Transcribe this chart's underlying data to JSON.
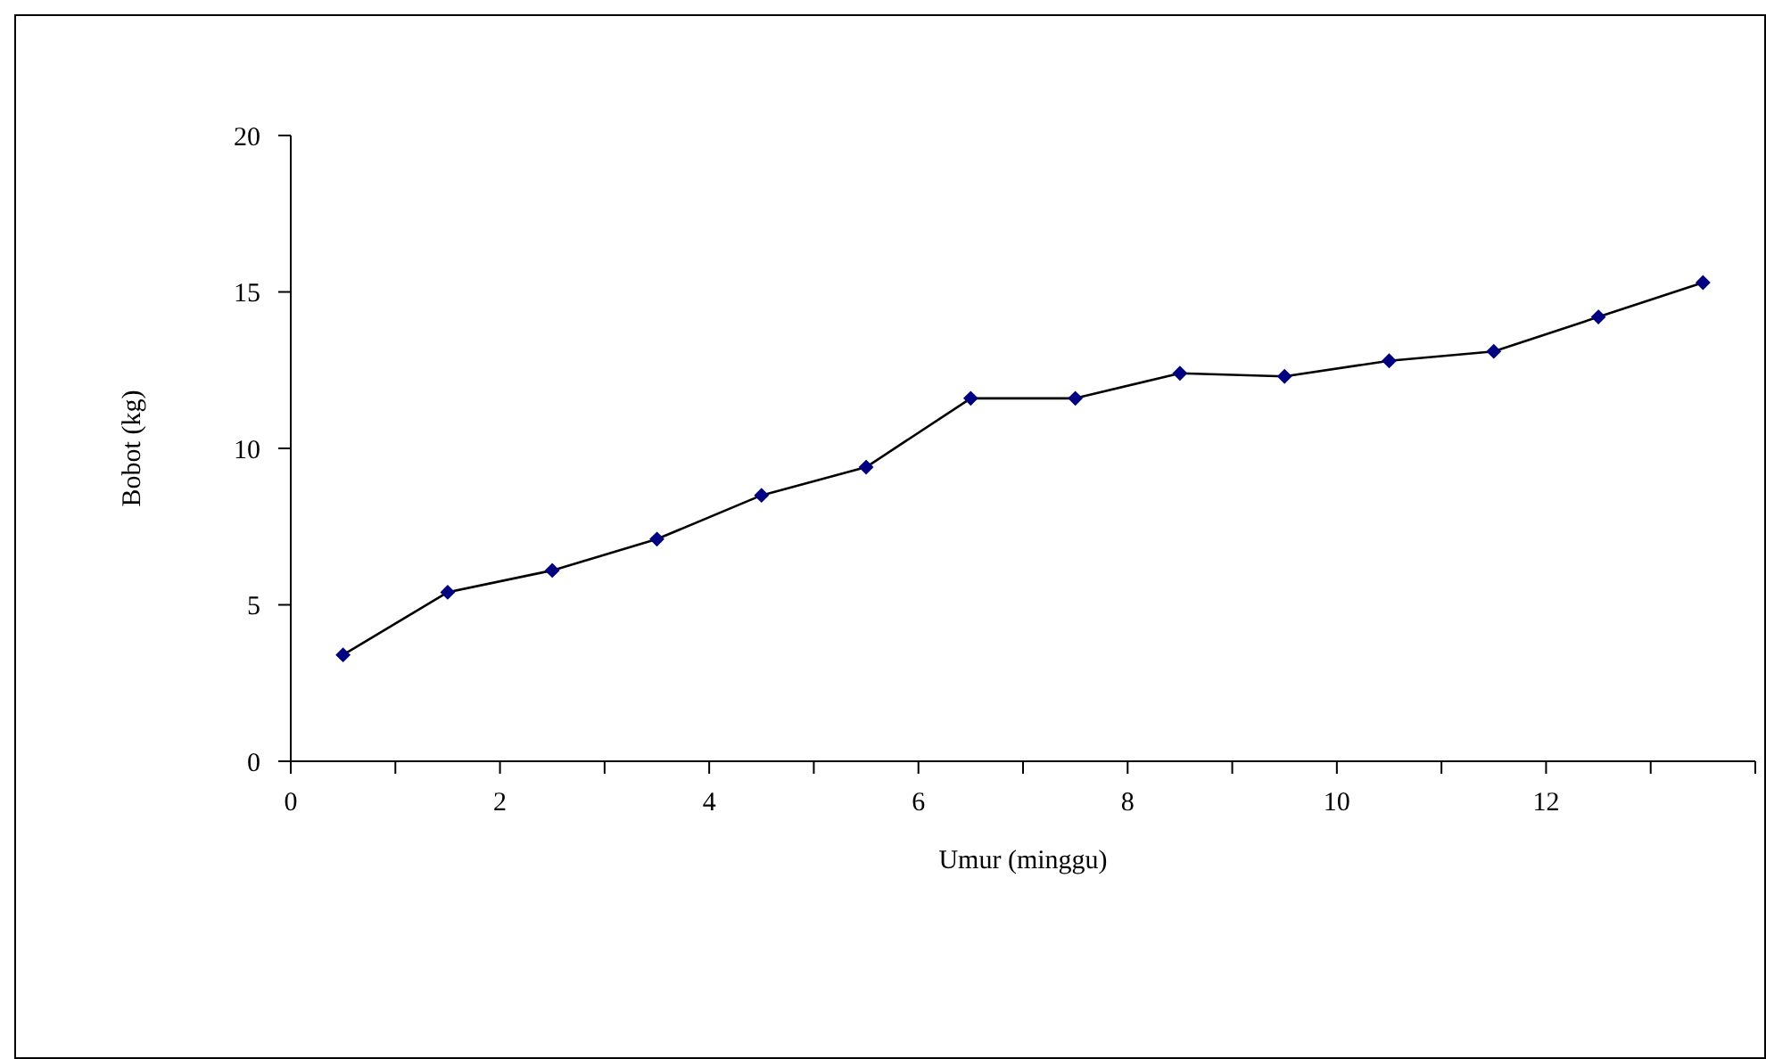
{
  "chart_data": {
    "type": "line",
    "xlabel": "Umur (minggu)",
    "ylabel": "Bobot (kg)",
    "x": [
      0.5,
      1.5,
      2.5,
      3.5,
      4.5,
      5.5,
      6.5,
      7.5,
      8.5,
      9.5,
      10.5,
      11.5,
      12.5,
      13.5
    ],
    "series": [
      {
        "color": "#000080",
        "values": [
          3.4,
          5.4,
          6.1,
          7.1,
          8.5,
          9.4,
          11.6,
          11.6,
          12.4,
          12.3,
          12.8,
          13.1,
          14.2,
          15.3
        ]
      }
    ],
    "xlim": [
      0,
      14
    ],
    "xticks": [
      0,
      {
        "value": 1,
        "label": null
      },
      2,
      {
        "value": 3,
        "label": null
      },
      4,
      {
        "value": 5,
        "label": null
      },
      6,
      {
        "value": 7,
        "label": null
      },
      8,
      {
        "value": 9,
        "label": null
      },
      10,
      {
        "value": 11,
        "label": null
      },
      12,
      {
        "value": 13,
        "label": null
      },
      {
        "value": 14,
        "label": null
      }
    ],
    "ylim": [
      0,
      20
    ],
    "yticks": [
      0,
      5,
      10,
      15,
      20
    ],
    "grid": false,
    "marker": "diamond",
    "line_style": "solid"
  }
}
